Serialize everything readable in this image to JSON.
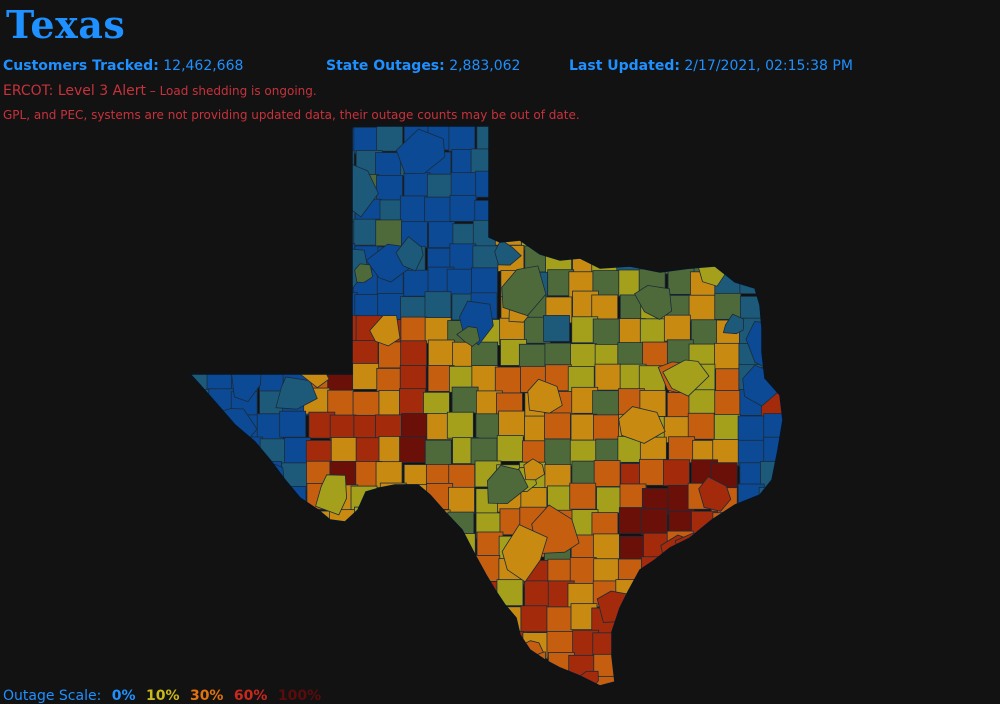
{
  "header": {
    "state_name": "Texas",
    "customers_tracked_label": "Customers Tracked:",
    "customers_tracked_value": "12,462,668",
    "state_outages_label": "State Outages:",
    "state_outages_value": "2,883,062",
    "last_updated_label": "Last Updated:",
    "last_updated_value": "2/17/2021, 02:15:38 PM"
  },
  "alert": {
    "title": "ERCOT: Level 3 Alert",
    "detail": " – Load shedding is ongoing."
  },
  "notice": "GPL, and PEC, systems are not providing updated data, their outage counts may be out of date.",
  "legend": {
    "label": "Outage Scale:",
    "steps": [
      {
        "label": "0%",
        "color": "#1e90ff"
      },
      {
        "label": "10%",
        "color": "#c9b81a"
      },
      {
        "label": "30%",
        "color": "#e0720f"
      },
      {
        "label": "60%",
        "color": "#c8281e"
      },
      {
        "label": "100%",
        "color": "#5a0c0c"
      }
    ]
  },
  "map": {
    "outage_colors": [
      "#0c4a96",
      "#1d5a7a",
      "#4f6a3a",
      "#a4a01c",
      "#c98a12",
      "#c65e10",
      "#a42a0c",
      "#6a1008"
    ],
    "border_color": "#1a2b3a"
  }
}
